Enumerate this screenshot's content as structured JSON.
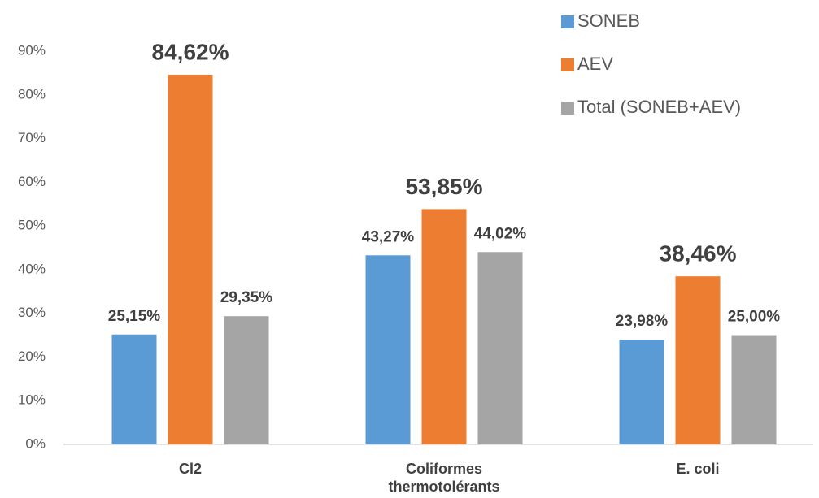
{
  "chart_data": {
    "type": "bar",
    "categories": [
      "Cl2",
      "Coliformes thermotolérants",
      "E. coli"
    ],
    "series": [
      {
        "name": "SONEB",
        "color": "#5b9bd5",
        "values": [
          25.15,
          43.27,
          23.98
        ],
        "value_labels": [
          "25,15%",
          "43,27%",
          "23,98%"
        ]
      },
      {
        "name": "AEV",
        "color": "#ed7d31",
        "values": [
          84.62,
          53.85,
          38.46
        ],
        "value_labels": [
          "84,62%",
          "53,85%",
          "38,46%"
        ]
      },
      {
        "name": "Total (SONEB+AEV)",
        "color": "#a5a5a5",
        "values": [
          29.35,
          44.02,
          25.0
        ],
        "value_labels": [
          "29,35%",
          "44,02%",
          "25,00%"
        ]
      }
    ],
    "ylim": [
      0,
      90
    ],
    "yticks": [
      {
        "value": 0,
        "label": "0%"
      },
      {
        "value": 10,
        "label": "10%"
      },
      {
        "value": 20,
        "label": "20%"
      },
      {
        "value": 30,
        "label": "30%"
      },
      {
        "value": 40,
        "label": "40%"
      },
      {
        "value": 50,
        "label": "50%"
      },
      {
        "value": 60,
        "label": "60%"
      },
      {
        "value": 70,
        "label": "70%"
      },
      {
        "value": 80,
        "label": "80%"
      },
      {
        "value": 90,
        "label": "90%"
      }
    ],
    "grid": false,
    "legend": "upper right"
  }
}
